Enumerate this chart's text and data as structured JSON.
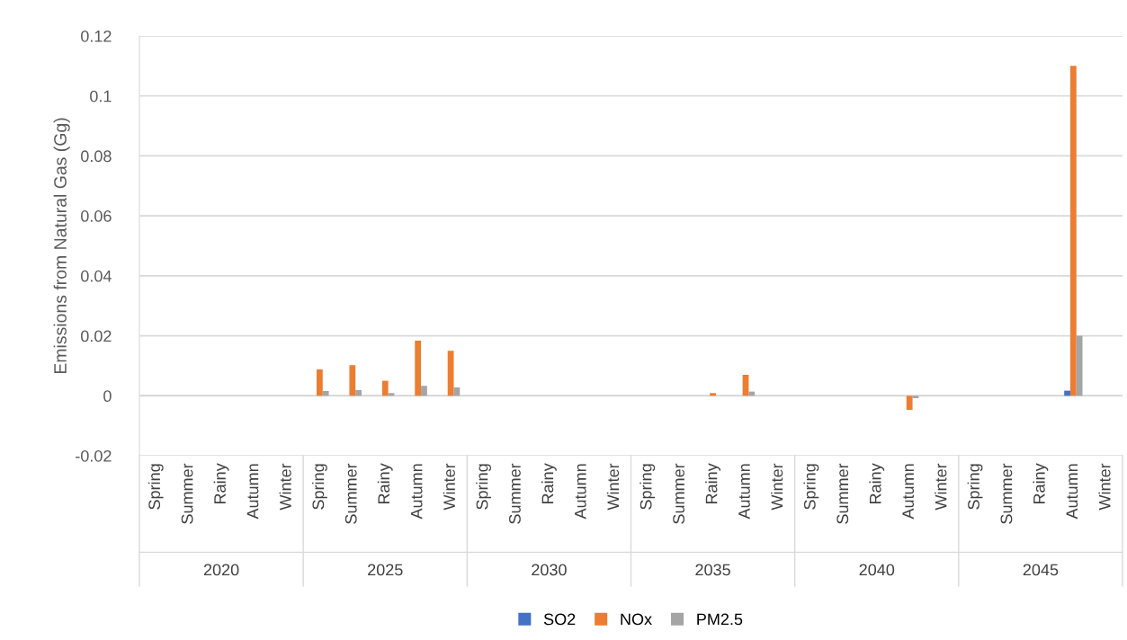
{
  "chart_data": {
    "type": "bar",
    "ylabel": "Emissions from Natural Gas (Gg)",
    "categories": [
      "Spring",
      "Summer",
      "Rainy",
      "Autumn",
      "Winter",
      "Spring",
      "Summer",
      "Rainy",
      "Autumn",
      "Winter",
      "Spring",
      "Summer",
      "Rainy",
      "Autumn",
      "Winter",
      "Spring",
      "Summer",
      "Rainy",
      "Autumn",
      "Winter",
      "Spring",
      "Summer",
      "Rainy",
      "Autumn",
      "Winter",
      "Spring",
      "Summer",
      "Rainy",
      "Autumn",
      "Winter"
    ],
    "annotations": [
      "2020",
      "2025",
      "2030",
      "2035",
      "2040",
      "2045"
    ],
    "series": [
      {
        "name": "SO2",
        "color": "#4472c4",
        "values": [
          0,
          0,
          0,
          0,
          0,
          0,
          0,
          0,
          0,
          0,
          0,
          0,
          0,
          0,
          0,
          0,
          0,
          0,
          0,
          0,
          0,
          0,
          0,
          0,
          0,
          0,
          0,
          0,
          0.0017,
          0
        ]
      },
      {
        "name": "NOx",
        "color": "#ed7d31",
        "values": [
          0,
          0,
          0,
          0,
          0,
          0.0088,
          0.0102,
          0.005,
          0.0184,
          0.015,
          0,
          0,
          0,
          0,
          0,
          0,
          0,
          0.0009,
          0.007,
          0,
          0,
          0,
          0,
          -0.0047,
          0,
          0,
          0,
          0,
          0.11,
          0
        ]
      },
      {
        "name": "PM2.5",
        "color": "#a5a5a5",
        "values": [
          0,
          0,
          0,
          0,
          0,
          0.0016,
          0.0019,
          0.0009,
          0.0033,
          0.0028,
          0,
          0,
          0,
          0,
          0,
          0,
          0,
          0,
          0.0014,
          0,
          0,
          0,
          0,
          -0.0008,
          0,
          0,
          0,
          0,
          0.02,
          0
        ]
      }
    ],
    "ylim": [
      -0.02,
      0.12
    ],
    "yticks": [
      {
        "value": -0.02,
        "label": "-0.02"
      },
      0,
      0.02,
      0.04,
      0.06,
      0.08,
      0.1,
      0.12
    ],
    "grid": "y",
    "legend": "bottom"
  }
}
